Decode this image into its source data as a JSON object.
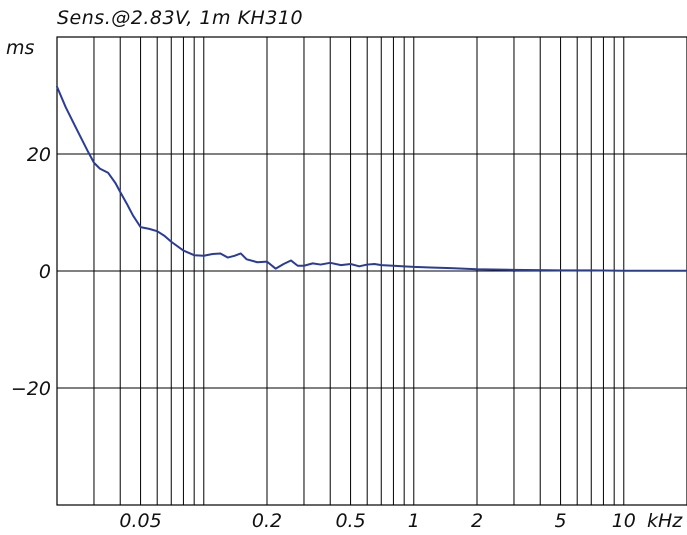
{
  "chart_data": {
    "type": "line",
    "title": "Sens.@2.83V, 1m KH310",
    "ylabel": "ms",
    "xunit": "kHz",
    "xscale": "log",
    "xlim": [
      0.02,
      20
    ],
    "ylim": [
      -40,
      40
    ],
    "grid": true,
    "x_tick_labels": [
      {
        "value": 0.05,
        "label": "0.05"
      },
      {
        "value": 0.2,
        "label": "0.2"
      },
      {
        "value": 0.5,
        "label": "0.5"
      },
      {
        "value": 1,
        "label": "1"
      },
      {
        "value": 2,
        "label": "2"
      },
      {
        "value": 5,
        "label": "5"
      },
      {
        "value": 10,
        "label": "10"
      }
    ],
    "y_tick_labels": [
      {
        "value": 20,
        "label": "20"
      },
      {
        "value": 0,
        "label": "0"
      },
      {
        "value": -20,
        "label": "−20"
      }
    ],
    "series": [
      {
        "color": "#2b3c96",
        "x": [
          0.02,
          0.022,
          0.025,
          0.028,
          0.03,
          0.032,
          0.035,
          0.038,
          0.04,
          0.043,
          0.046,
          0.05,
          0.055,
          0.06,
          0.065,
          0.07,
          0.08,
          0.09,
          0.1,
          0.11,
          0.12,
          0.13,
          0.14,
          0.15,
          0.16,
          0.18,
          0.2,
          0.22,
          0.24,
          0.26,
          0.28,
          0.3,
          0.33,
          0.36,
          0.4,
          0.45,
          0.5,
          0.55,
          0.6,
          0.65,
          0.7,
          0.8,
          0.9,
          1.0,
          1.2,
          1.5,
          2.0,
          3.0,
          5.0,
          7.0,
          10.0,
          15.0,
          20.0
        ],
        "y": [
          31.5,
          28.0,
          24.0,
          20.5,
          18.5,
          17.5,
          16.8,
          15.0,
          13.5,
          11.5,
          9.5,
          7.5,
          7.2,
          6.8,
          6.0,
          5.0,
          3.5,
          2.7,
          2.6,
          2.9,
          3.0,
          2.3,
          2.6,
          3.0,
          2.0,
          1.5,
          1.6,
          0.4,
          1.2,
          1.8,
          0.9,
          0.9,
          1.3,
          1.1,
          1.4,
          1.0,
          1.2,
          0.8,
          1.1,
          1.2,
          1.0,
          0.9,
          0.8,
          0.7,
          0.6,
          0.5,
          0.3,
          0.2,
          0.1,
          0.1,
          0.05,
          0.05,
          0.05
        ]
      }
    ]
  }
}
